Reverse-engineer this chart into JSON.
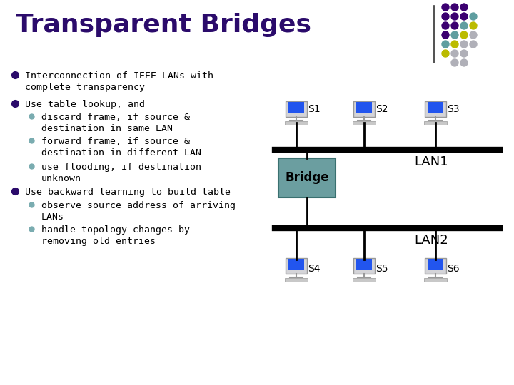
{
  "title": "Transparent Bridges",
  "title_color": "#2B0B6B",
  "title_fontsize": 26,
  "bg_color": "#FFFFFF",
  "bullet_color": "#2B0B6B",
  "sub_bullet_color": "#7AACB0",
  "text_color": "#000000",
  "lan1_label": "LAN1",
  "lan2_label": "LAN2",
  "bridge_label": "Bridge",
  "bridge_color": "#6B9EA0",
  "lan_line_color": "#000000",
  "node_labels_top": [
    "S1",
    "S2",
    "S3"
  ],
  "node_labels_bottom": [
    "S4",
    "S5",
    "S6"
  ],
  "monitor_screen_color": "#2255EE",
  "monitor_body_color": "#C8C8C8",
  "dot_pattern": [
    [
      1,
      1,
      "#3B0070"
    ],
    [
      1,
      2,
      "#3B0070"
    ],
    [
      1,
      3,
      "#3B0070"
    ],
    [
      2,
      1,
      "#3B0070"
    ],
    [
      2,
      2,
      "#3B0070"
    ],
    [
      2,
      3,
      "#3B0070"
    ],
    [
      2,
      4,
      "#5F9EA0"
    ],
    [
      3,
      1,
      "#3B0070"
    ],
    [
      3,
      2,
      "#3B0070"
    ],
    [
      3,
      3,
      "#5F9EA0"
    ],
    [
      3,
      4,
      "#BBBB00"
    ],
    [
      4,
      1,
      "#3B0070"
    ],
    [
      4,
      2,
      "#5F9EA0"
    ],
    [
      4,
      3,
      "#BBBB00"
    ],
    [
      4,
      4,
      "#B0B0B8"
    ],
    [
      5,
      1,
      "#5F9EA0"
    ],
    [
      5,
      2,
      "#BBBB00"
    ],
    [
      5,
      3,
      "#B0B0B8"
    ],
    [
      5,
      4,
      "#B0B0B8"
    ],
    [
      6,
      1,
      "#BBBB00"
    ],
    [
      6,
      2,
      "#B0B0B8"
    ],
    [
      6,
      3,
      "#B0B0B8"
    ],
    [
      7,
      2,
      "#B0B0B8"
    ],
    [
      7,
      3,
      "#B0B0B8"
    ]
  ]
}
